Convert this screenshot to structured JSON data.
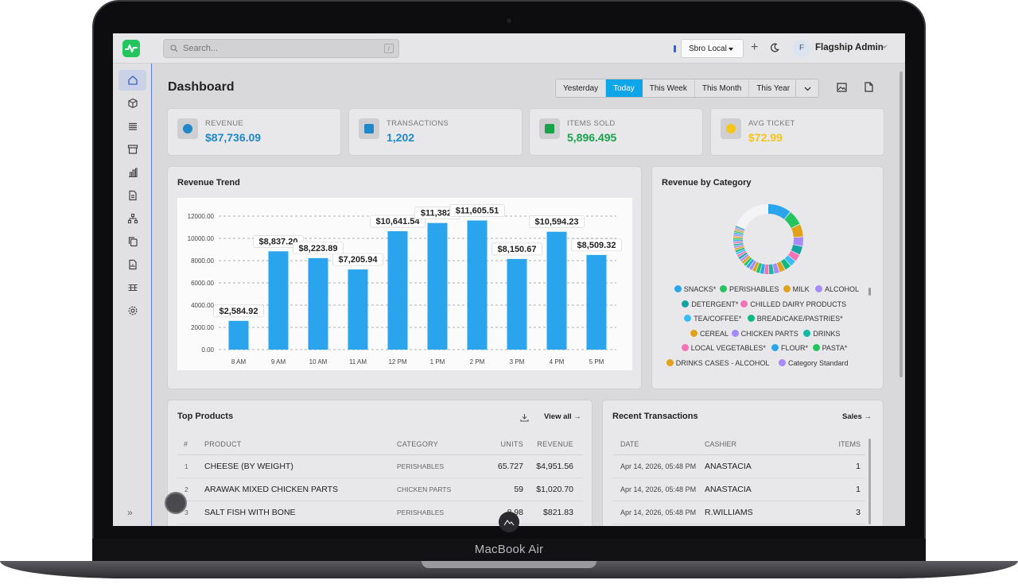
{
  "device": {
    "brand": "MacBook Air"
  },
  "topbar": {
    "search_placeholder": "Search...",
    "location": "Sbro Local",
    "user_initial": "F",
    "user_name": "Flagship Admin"
  },
  "sidebar": {
    "items": [
      "home-icon",
      "box-icon",
      "list-icon",
      "archive-icon",
      "bar-chart-icon",
      "document-icon",
      "org-chart-icon",
      "copy-icon",
      "report-icon",
      "table-icon",
      "settings-icon"
    ],
    "active_index": 0,
    "collapse_label": "»"
  },
  "page": {
    "title": "Dashboard",
    "ranges": [
      "Yesterday",
      "Today",
      "This Week",
      "This Month",
      "This Year"
    ],
    "active_range": "Today"
  },
  "kpis": [
    {
      "label": "REVENUE",
      "value": "$87,736.09",
      "color": "#1e88c8",
      "icon": "dollar-icon"
    },
    {
      "label": "TRANSACTIONS",
      "value": "1,202",
      "color": "#1e88c8",
      "icon": "receipt-icon"
    },
    {
      "label": "ITEMS SOLD",
      "value": "5,896.495",
      "color": "#16a34a",
      "icon": "cube-icon"
    },
    {
      "label": "AVG TICKET",
      "value": "$72.99",
      "color": "#f5c518",
      "icon": "ticket-icon"
    }
  ],
  "revenue_trend": {
    "title": "Revenue Trend"
  },
  "chart_data": {
    "type": "bar",
    "categories": [
      "8 AM",
      "9 AM",
      "10 AM",
      "11 AM",
      "12 PM",
      "1 PM",
      "2 PM",
      "3 PM",
      "4 PM",
      "5 PM"
    ],
    "values": [
      2584.92,
      8837.2,
      8223.89,
      7205.94,
      10641.54,
      11382.0,
      11605.51,
      8150.67,
      10594.23,
      8509.32
    ],
    "data_labels": [
      "$2,584.92",
      "$8,837.20",
      "$8,223.89",
      "$7,205.94",
      "$10,641.54",
      "$11,382.",
      "$11,605.51",
      "$8,150.67",
      "$10,594.23",
      "$8,509.32"
    ],
    "y_ticks": [
      "0.00",
      "2000.00",
      "4000.00",
      "6000.00",
      "8000.00",
      "10000.00",
      "12000.00"
    ],
    "ylim": [
      0,
      12000
    ],
    "color": "#2ba4ee",
    "grid": true
  },
  "revenue_by_category": {
    "title": "Revenue by Category",
    "legend": [
      {
        "label": "SNACKS*",
        "color": "#2ba4ee"
      },
      {
        "label": "PERISHABLES",
        "color": "#22c55e"
      },
      {
        "label": "MILK",
        "color": "#e0a21b"
      },
      {
        "label": "ALCOHOL",
        "color": "#a78bfa"
      },
      {
        "label": "DETERGENT*",
        "color": "#14a3a3"
      },
      {
        "label": "CHILLED DAIRY PRODUCTS",
        "color": "#f472b6"
      },
      {
        "label": "TEA/COFFEE*",
        "color": "#38bdf8"
      },
      {
        "label": "BREAD/CAKE/PASTRIES*",
        "color": "#10b981"
      },
      {
        "label": "CEREAL",
        "color": "#e0a21b"
      },
      {
        "label": "CHICKEN PARTS",
        "color": "#a78bfa"
      },
      {
        "label": "DRINKS",
        "color": "#14b8a6"
      },
      {
        "label": "LOCAL VEGETABLES*",
        "color": "#f472b6"
      },
      {
        "label": "FLOUR*",
        "color": "#2ba4ee"
      },
      {
        "label": "PASTA*",
        "color": "#22c55e"
      },
      {
        "label": "DRINKS CASES - ALCOHOL",
        "color": "#e0a21b"
      },
      {
        "label": "Category Standard",
        "color": "#a78bfa"
      }
    ]
  },
  "top_products": {
    "title": "Top Products",
    "view_all": "View all →",
    "columns": [
      "#",
      "PRODUCT",
      "CATEGORY",
      "UNITS",
      "REVENUE"
    ],
    "rows": [
      {
        "n": "1",
        "product": "CHEESE (BY WEIGHT)",
        "category": "PERISHABLES",
        "units": "65.727",
        "revenue": "$4,951.56"
      },
      {
        "n": "2",
        "product": "ARAWAK MIXED CHICKEN PARTS",
        "category": "CHICKEN PARTS",
        "units": "59",
        "revenue": "$1,020.70"
      },
      {
        "n": "3",
        "product": "SALT FISH WITH BONE",
        "category": "PERISHABLES",
        "units": "8.98",
        "revenue": "$821.83"
      }
    ]
  },
  "recent_transactions": {
    "title": "Recent Transactions",
    "link": "Sales →",
    "columns": [
      "DATE",
      "CASHIER",
      "ITEMS"
    ],
    "rows": [
      {
        "date": "Apr 14, 2026, 05:48 PM",
        "cashier": "ANASTACIA",
        "items": "1"
      },
      {
        "date": "Apr 14, 2026, 05:48 PM",
        "cashier": "ANASTACIA",
        "items": "1"
      },
      {
        "date": "Apr 14, 2026, 05:48 PM",
        "cashier": "R.WILLIAMS",
        "items": "3"
      }
    ]
  }
}
